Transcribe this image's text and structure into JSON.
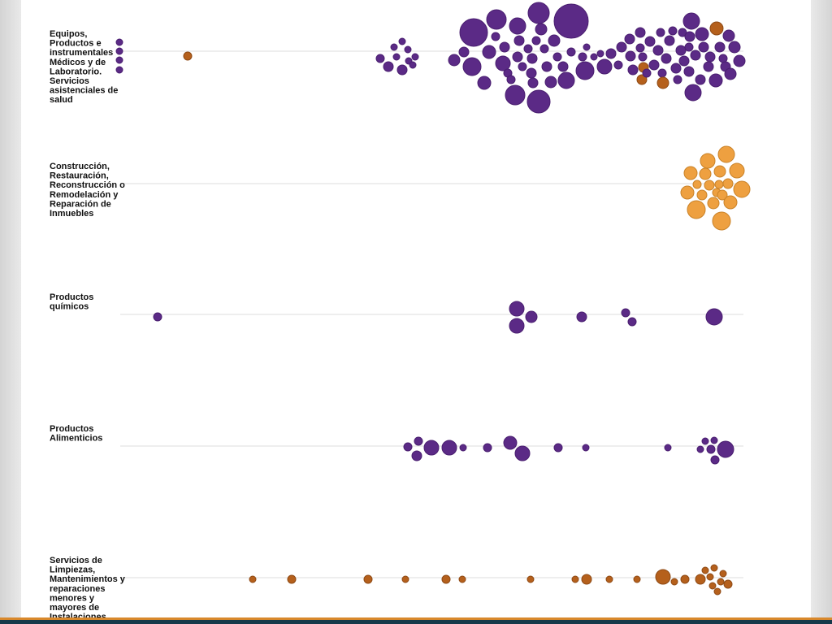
{
  "chart_data": {
    "type": "scatter",
    "title": "",
    "xlabel": "",
    "ylabel": "",
    "colors": {
      "purple": "#5b2a86",
      "purple_stroke": "#4a1f70",
      "orange_dark": "#b5601c",
      "orange_dark_stroke": "#8e4a15",
      "orange_light": "#eea040",
      "orange_light_stroke": "#c98228",
      "line": "#dddddd"
    },
    "rows": [
      {
        "label": [
          "Equipos,",
          "Productos e",
          "instrumentales",
          "Médicos y de",
          "Laboratorio.",
          "Servicios",
          "asistenciales de",
          "salud"
        ],
        "bubbles": [
          [
            147,
            52,
            4,
            "p"
          ],
          [
            147,
            63,
            4,
            "p"
          ],
          [
            147,
            74,
            4,
            "p"
          ],
          [
            147,
            86,
            4,
            "p"
          ],
          [
            231,
            69,
            5,
            "o"
          ],
          [
            468,
            72,
            5,
            "p"
          ],
          [
            478,
            82,
            6,
            "p"
          ],
          [
            485,
            58,
            4,
            "p"
          ],
          [
            488,
            70,
            4,
            "p"
          ],
          [
            495,
            51,
            4,
            "p"
          ],
          [
            495,
            86,
            6,
            "p"
          ],
          [
            502,
            61,
            4,
            "p"
          ],
          [
            503,
            75,
            4,
            "p"
          ],
          [
            508,
            80,
            4,
            "p"
          ],
          [
            511,
            70,
            4,
            "p"
          ],
          [
            559,
            74,
            7,
            "p"
          ],
          [
            571,
            64,
            6,
            "p"
          ],
          [
            581,
            82,
            11,
            "p"
          ],
          [
            583,
            40,
            17,
            "p"
          ],
          [
            596,
            102,
            8,
            "p"
          ],
          [
            602,
            64,
            8,
            "p"
          ],
          [
            611,
            24,
            12,
            "p"
          ],
          [
            610,
            45,
            5,
            "p"
          ],
          [
            619,
            78,
            9,
            "p"
          ],
          [
            621,
            58,
            6,
            "p"
          ],
          [
            625,
            90,
            5,
            "p"
          ],
          [
            629,
            98,
            5,
            "p"
          ],
          [
            634,
            117,
            12,
            "p"
          ],
          [
            637,
            32,
            10,
            "p"
          ],
          [
            637,
            70,
            6,
            "p"
          ],
          [
            639,
            50,
            6,
            "p"
          ],
          [
            643,
            82,
            5,
            "p"
          ],
          [
            650,
            60,
            5,
            "p"
          ],
          [
            654,
            90,
            6,
            "p"
          ],
          [
            655,
            72,
            6,
            "p"
          ],
          [
            656,
            102,
            6,
            "p"
          ],
          [
            660,
            50,
            5,
            "p"
          ],
          [
            663,
            16,
            13,
            "p"
          ],
          [
            663,
            125,
            14,
            "p"
          ],
          [
            666,
            36,
            7,
            "p"
          ],
          [
            670,
            60,
            5,
            "p"
          ],
          [
            673,
            82,
            6,
            "p"
          ],
          [
            678,
            101,
            7,
            "p"
          ],
          [
            682,
            50,
            7,
            "p"
          ],
          [
            686,
            70,
            5,
            "p"
          ],
          [
            693,
            82,
            6,
            "p"
          ],
          [
            697,
            99,
            10,
            "p"
          ],
          [
            703,
            26,
            21,
            "p"
          ],
          [
            703,
            64,
            5,
            "p"
          ],
          [
            717,
            70,
            5,
            "p"
          ],
          [
            720,
            87,
            11,
            "p"
          ],
          [
            722,
            58,
            4,
            "p"
          ],
          [
            731,
            70,
            4,
            "p"
          ],
          [
            739,
            66,
            4,
            "p"
          ],
          [
            744,
            82,
            9,
            "p"
          ],
          [
            752,
            66,
            6,
            "p"
          ],
          [
            761,
            80,
            5,
            "p"
          ],
          [
            765,
            58,
            6,
            "p"
          ],
          [
            775,
            48,
            6,
            "p"
          ],
          [
            776,
            69,
            6,
            "p"
          ],
          [
            779,
            86,
            6,
            "p"
          ],
          [
            788,
            40,
            6,
            "p"
          ],
          [
            788,
            59,
            5,
            "p"
          ],
          [
            791,
            70,
            5,
            "p"
          ],
          [
            792,
            83,
            6,
            "o"
          ],
          [
            790,
            98,
            6,
            "o"
          ],
          [
            796,
            90,
            5,
            "p"
          ],
          [
            800,
            51,
            6,
            "p"
          ],
          [
            805,
            80,
            6,
            "p"
          ],
          [
            810,
            62,
            6,
            "p"
          ],
          [
            813,
            40,
            5,
            "p"
          ],
          [
            815,
            90,
            5,
            "p"
          ],
          [
            816,
            102,
            7,
            "o"
          ],
          [
            820,
            72,
            6,
            "p"
          ],
          [
            824,
            50,
            6,
            "p"
          ],
          [
            828,
            38,
            5,
            "p"
          ],
          [
            832,
            84,
            6,
            "p"
          ],
          [
            834,
            98,
            5,
            "p"
          ],
          [
            838,
            62,
            6,
            "p"
          ],
          [
            840,
            40,
            5,
            "p"
          ],
          [
            842,
            75,
            6,
            "p"
          ],
          [
            848,
            88,
            6,
            "p"
          ],
          [
            848,
            58,
            5,
            "p"
          ],
          [
            849,
            45,
            6,
            "p"
          ],
          [
            851,
            26,
            10,
            "p"
          ],
          [
            853,
            114,
            10,
            "p"
          ],
          [
            856,
            68,
            6,
            "p"
          ],
          [
            862,
            98,
            6,
            "p"
          ],
          [
            864,
            42,
            8,
            "p"
          ],
          [
            866,
            58,
            6,
            "p"
          ],
          [
            872,
            82,
            6,
            "p"
          ],
          [
            874,
            70,
            6,
            "p"
          ],
          [
            882,
            35,
            8,
            "o"
          ],
          [
            881,
            99,
            8,
            "p"
          ],
          [
            886,
            58,
            6,
            "p"
          ],
          [
            890,
            72,
            5,
            "p"
          ],
          [
            893,
            82,
            6,
            "p"
          ],
          [
            897,
            44,
            7,
            "p"
          ],
          [
            899,
            91,
            7,
            "p"
          ],
          [
            904,
            58,
            7,
            "p"
          ],
          [
            910,
            75,
            7,
            "p"
          ]
        ]
      },
      {
        "label": [
          "Construcción,",
          "Restauración,",
          "Reconstrucción o",
          "Remodelación y",
          "Reparación de",
          "Inmuebles"
        ],
        "bubbles": [
          [
            846,
            237,
            8,
            "l"
          ],
          [
            850,
            213,
            8,
            "l"
          ],
          [
            857,
            258,
            11,
            "l"
          ],
          [
            858,
            227,
            5,
            "l"
          ],
          [
            864,
            240,
            6,
            "l"
          ],
          [
            868,
            214,
            7,
            "l"
          ],
          [
            871,
            198,
            9,
            "l"
          ],
          [
            873,
            228,
            6,
            "l"
          ],
          [
            878,
            250,
            7,
            "l"
          ],
          [
            882,
            237,
            5,
            "l"
          ],
          [
            885,
            227,
            5,
            "l"
          ],
          [
            886,
            211,
            7,
            "l"
          ],
          [
            888,
            272,
            11,
            "l"
          ],
          [
            889,
            240,
            6,
            "l"
          ],
          [
            894,
            190,
            10,
            "l"
          ],
          [
            896,
            226,
            6,
            "l"
          ],
          [
            899,
            249,
            8,
            "l"
          ],
          [
            907,
            210,
            9,
            "l"
          ],
          [
            913,
            233,
            10,
            "l"
          ]
        ]
      },
      {
        "label": [
          "Productos",
          "químicos"
        ],
        "bubbles": [
          [
            194,
            390,
            5,
            "p"
          ],
          [
            636,
            380,
            9,
            "p"
          ],
          [
            636,
            401,
            9,
            "p"
          ],
          [
            654,
            390,
            7,
            "p"
          ],
          [
            716,
            390,
            6,
            "p"
          ],
          [
            770,
            385,
            5,
            "p"
          ],
          [
            778,
            396,
            5,
            "p"
          ],
          [
            879,
            390,
            10,
            "p"
          ]
        ]
      },
      {
        "label": [
          "Productos",
          "Alimenticios"
        ],
        "bubbles": [
          [
            502,
            550,
            5,
            "p"
          ],
          [
            515,
            543,
            5,
            "p"
          ],
          [
            513,
            561,
            6,
            "p"
          ],
          [
            531,
            551,
            9,
            "p"
          ],
          [
            553,
            551,
            9,
            "p"
          ],
          [
            570,
            551,
            4,
            "p"
          ],
          [
            600,
            551,
            5,
            "p"
          ],
          [
            628,
            545,
            8,
            "p"
          ],
          [
            643,
            558,
            9,
            "p"
          ],
          [
            687,
            551,
            5,
            "p"
          ],
          [
            721,
            551,
            4,
            "p"
          ],
          [
            822,
            551,
            4,
            "p"
          ],
          [
            862,
            553,
            4,
            "p"
          ],
          [
            868,
            543,
            4,
            "p"
          ],
          [
            875,
            553,
            5,
            "p"
          ],
          [
            880,
            566,
            5,
            "p"
          ],
          [
            879,
            542,
            4,
            "p"
          ],
          [
            893,
            553,
            10,
            "p"
          ]
        ]
      },
      {
        "label": [
          "Servicios de",
          "Limpiezas,",
          "Mantenimientos y",
          "reparaciones",
          "menores y",
          "mayores de",
          "Instalaciones"
        ],
        "bubbles": [
          [
            311,
            713,
            4,
            "o"
          ],
          [
            359,
            713,
            5,
            "o"
          ],
          [
            453,
            713,
            5,
            "o"
          ],
          [
            499,
            713,
            4,
            "o"
          ],
          [
            549,
            713,
            5,
            "o"
          ],
          [
            569,
            713,
            4,
            "o"
          ],
          [
            653,
            713,
            4,
            "o"
          ],
          [
            708,
            713,
            4,
            "o"
          ],
          [
            722,
            713,
            6,
            "o"
          ],
          [
            750,
            713,
            4,
            "o"
          ],
          [
            784,
            713,
            4,
            "o"
          ],
          [
            816,
            710,
            9,
            "o"
          ],
          [
            830,
            716,
            4,
            "o"
          ],
          [
            843,
            713,
            5,
            "o"
          ],
          [
            862,
            713,
            6,
            "o"
          ],
          [
            868,
            702,
            4,
            "o"
          ],
          [
            874,
            710,
            4,
            "o"
          ],
          [
            879,
            699,
            4,
            "o"
          ],
          [
            877,
            721,
            4,
            "o"
          ],
          [
            883,
            728,
            4,
            "o"
          ],
          [
            887,
            716,
            4,
            "o"
          ],
          [
            890,
            706,
            4,
            "o"
          ],
          [
            896,
            719,
            5,
            "o"
          ]
        ]
      }
    ]
  }
}
